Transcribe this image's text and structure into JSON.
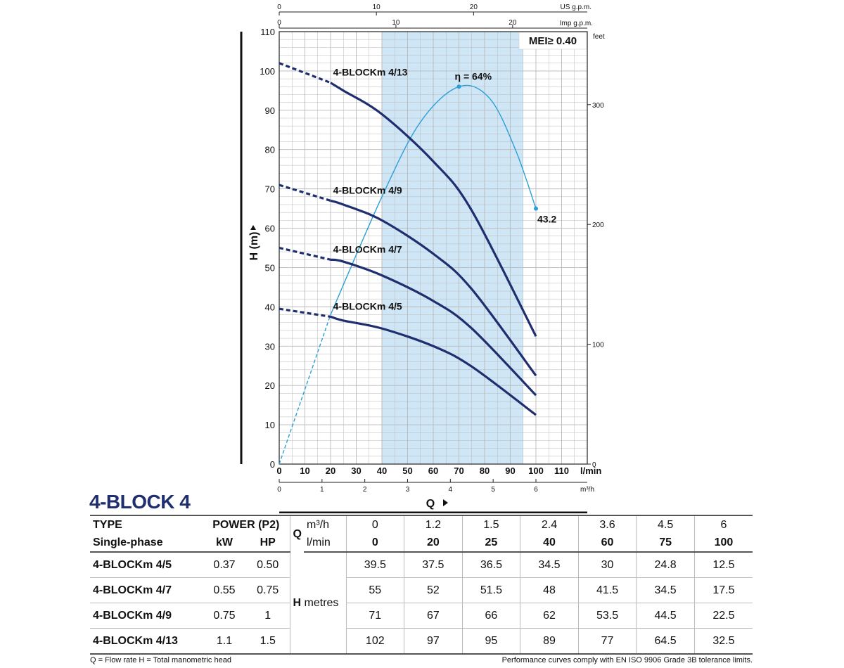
{
  "chart_data": {
    "type": "line",
    "xlabel": "Q",
    "ylabel": "H (m)",
    "x_unit": "l/min",
    "xlim": [
      0,
      120
    ],
    "ylim": [
      0,
      110
    ],
    "x_ticks": [
      0,
      10,
      20,
      30,
      40,
      50,
      60,
      70,
      80,
      90,
      100,
      110
    ],
    "y_ticks": [
      0,
      10,
      20,
      30,
      40,
      50,
      60,
      70,
      80,
      90,
      100,
      110
    ],
    "secondary_axes": {
      "m3h": {
        "label": "m³/h",
        "ticks": [
          0,
          1,
          2,
          3,
          4,
          5,
          6
        ]
      },
      "us_gpm": {
        "label": "US g.p.m.",
        "ticks": [
          0,
          10,
          20
        ]
      },
      "imp_gpm": {
        "label": "Imp g.p.m.",
        "ticks": [
          0,
          10,
          20
        ]
      },
      "feet": {
        "label": "feet",
        "ticks": [
          0,
          100,
          200,
          300
        ]
      }
    },
    "mei_label": "MEI≥ 0.40",
    "efficiency_label": "η = 64%",
    "efficiency_end_label": "43.2",
    "efficiency_curve": {
      "x": [
        0,
        20,
        40,
        55,
        70,
        82,
        92,
        100
      ],
      "y": [
        0,
        38,
        68,
        87,
        96,
        93,
        80,
        65
      ]
    },
    "recommended_range": [
      40,
      95
    ],
    "series": [
      {
        "name": "4-BLOCKm 4/13",
        "x": [
          0,
          20,
          25,
          40,
          60,
          75,
          100
        ],
        "y": [
          102,
          97,
          95,
          89,
          77,
          64.5,
          32.5
        ]
      },
      {
        "name": "4-BLOCKm 4/9",
        "x": [
          0,
          20,
          25,
          40,
          60,
          75,
          100
        ],
        "y": [
          71,
          67,
          66,
          62,
          53.5,
          44.5,
          22.5
        ]
      },
      {
        "name": "4-BLOCKm 4/7",
        "x": [
          0,
          20,
          25,
          40,
          60,
          75,
          100
        ],
        "y": [
          55,
          52,
          51.5,
          48,
          41.5,
          34.5,
          17.5
        ]
      },
      {
        "name": "4-BLOCKm 4/5",
        "x": [
          0,
          20,
          25,
          40,
          60,
          75,
          100
        ],
        "y": [
          39.5,
          37.5,
          36.5,
          34.5,
          30,
          24.8,
          12.5
        ]
      }
    ],
    "grid": true
  },
  "table": {
    "title": "4-BLOCK 4",
    "type_header": "TYPE",
    "subtype_header": "Single-phase",
    "power_header": "POWER (P2)",
    "kw_header": "kW",
    "hp_header": "HP",
    "q_label": "Q",
    "m3h_label": "m³/h",
    "lmin_label": "l/min",
    "h_label": "H",
    "h_unit": "metres",
    "m3h_values": [
      "0",
      "1.2",
      "1.5",
      "2.4",
      "3.6",
      "4.5",
      "6"
    ],
    "lmin_values": [
      "0",
      "20",
      "25",
      "40",
      "60",
      "75",
      "100"
    ],
    "rows": [
      {
        "type": "4-BLOCKm 4/5",
        "kw": "0.37",
        "hp": "0.50",
        "h": [
          "39.5",
          "37.5",
          "36.5",
          "34.5",
          "30",
          "24.8",
          "12.5"
        ]
      },
      {
        "type": "4-BLOCKm 4/7",
        "kw": "0.55",
        "hp": "0.75",
        "h": [
          "55",
          "52",
          "51.5",
          "48",
          "41.5",
          "34.5",
          "17.5"
        ]
      },
      {
        "type": "4-BLOCKm 4/9",
        "kw": "0.75",
        "hp": "1",
        "h": [
          "71",
          "67",
          "66",
          "62",
          "53.5",
          "44.5",
          "22.5"
        ]
      },
      {
        "type": "4-BLOCKm 4/13",
        "kw": "1.1",
        "hp": "1.5",
        "h": [
          "102",
          "97",
          "95",
          "89",
          "77",
          "64.5",
          "32.5"
        ]
      }
    ]
  },
  "footer": {
    "legend": "Q = Flow rate   H = Total manometric head",
    "note": "Performance curves comply with EN ISO 9906 Grade 3B tolerance limits."
  },
  "colors": {
    "curve": "#1f2e6e",
    "efficiency": "#2a9fd6",
    "band": "#cfe6f6",
    "grid": "#b9b9b9"
  }
}
